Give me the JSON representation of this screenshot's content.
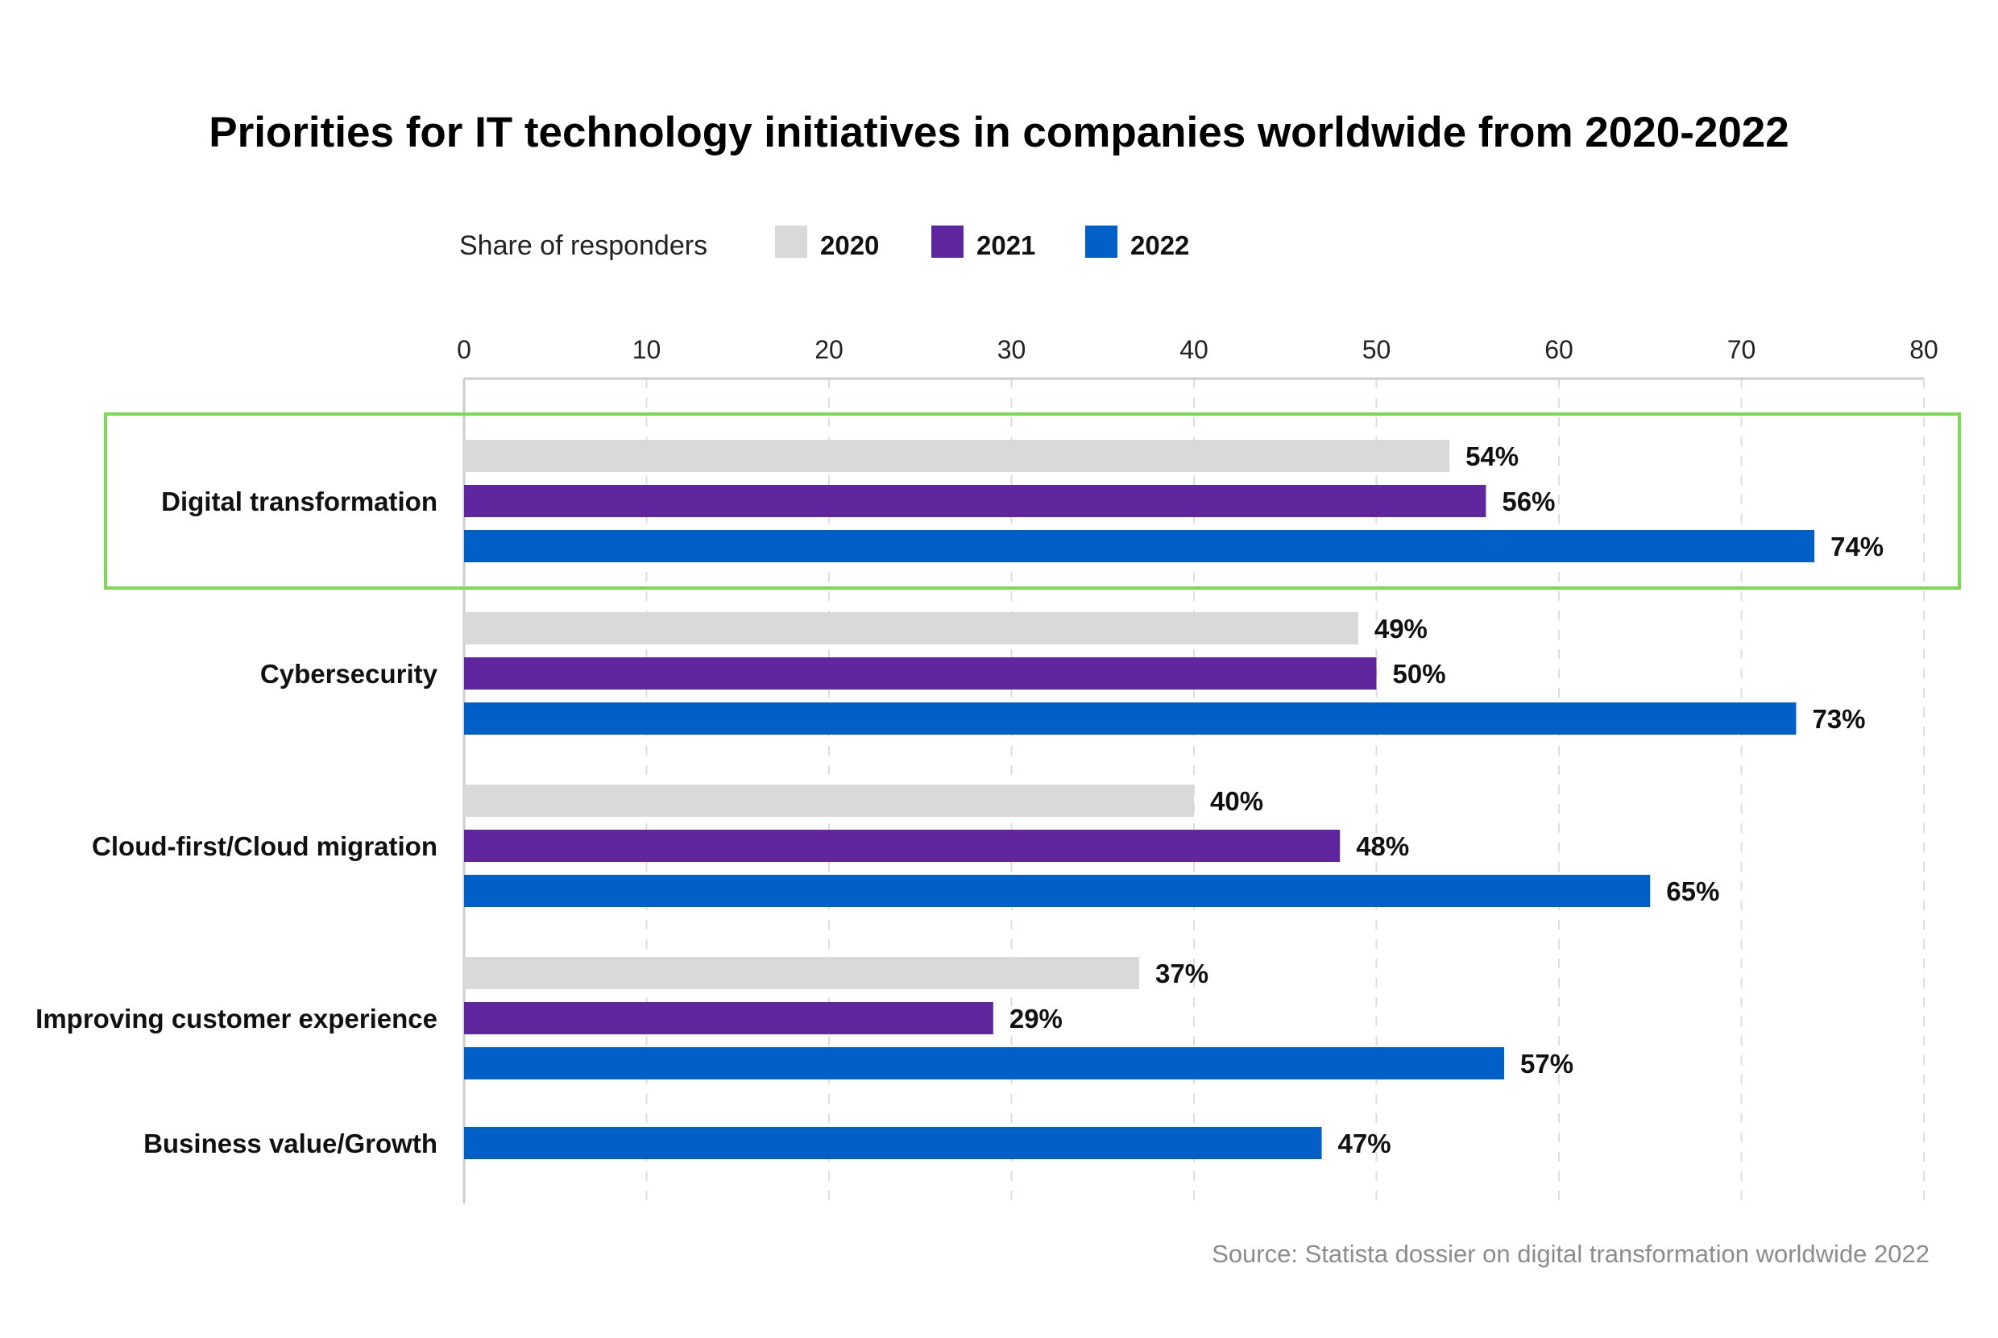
{
  "chart_data": {
    "type": "bar",
    "orientation": "horizontal",
    "title": "Priorities for IT technology initiatives in companies worldwide from 2020-2022",
    "legend_title": "Share of responders",
    "legend_placement": "top",
    "categories": [
      "Digital transformation",
      "Cybersecurity",
      "Cloud-first/Cloud migration",
      "Improving customer experience",
      "Business value/Growth"
    ],
    "series": [
      {
        "name": "2020",
        "color": "#d9d9d9",
        "values": [
          54,
          49,
          40,
          37,
          null
        ]
      },
      {
        "name": "2021",
        "color": "#60269e",
        "values": [
          56,
          50,
          48,
          29,
          null
        ]
      },
      {
        "name": "2022",
        "color": "#0060c8",
        "values": [
          74,
          73,
          65,
          57,
          47
        ]
      }
    ],
    "value_labels": [
      [
        "54%",
        "49%",
        "40%",
        "37%",
        null
      ],
      [
        "56%",
        "50%",
        "48%",
        "29%",
        null
      ],
      [
        "74%",
        "73%",
        "65%",
        "57%",
        "47%"
      ]
    ],
    "xlim": [
      0,
      80
    ],
    "xticks": [
      "0",
      "10",
      "20",
      "30",
      "40",
      "50",
      "60",
      "70",
      "80"
    ],
    "grid": "vertical dashed",
    "highlighted_category": "Digital transformation",
    "highlight_color": "#7ed957",
    "source": "Source: Statista dossier on digital transformation worldwide 2022"
  }
}
